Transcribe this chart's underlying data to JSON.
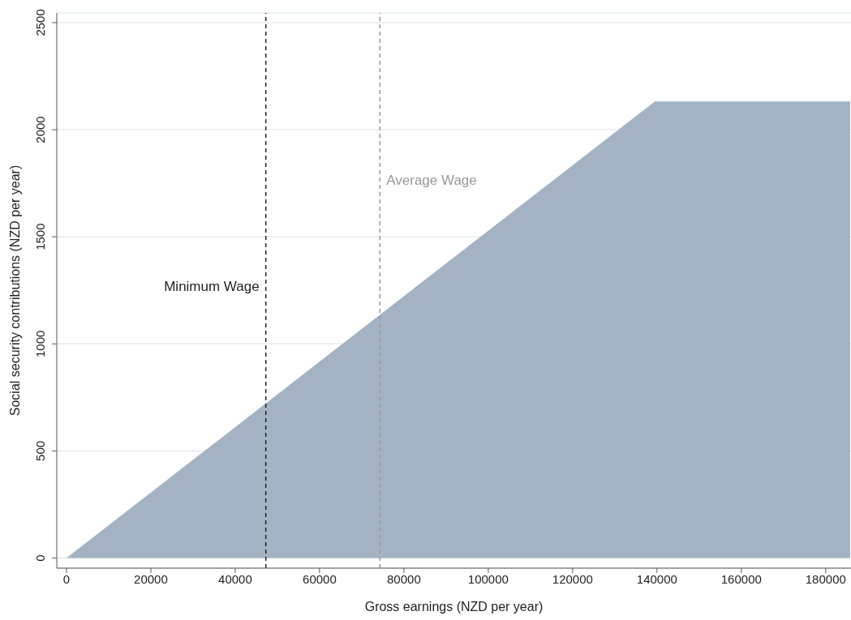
{
  "chart_data": {
    "type": "area",
    "xlabel": "Gross earnings (NZD per year)",
    "ylabel": "Social security contributions (NZD per year)",
    "x": [
      0,
      139500,
      185800
    ],
    "series": [
      {
        "color": "#a3b3c3",
        "values": [
          0,
          2132,
          2132
        ]
      }
    ],
    "xlim": [
      -2300,
      186000
    ],
    "xticks": [
      0,
      20000,
      40000,
      60000,
      80000,
      100000,
      120000,
      140000,
      160000,
      180000
    ],
    "ylim": [
      -47,
      2545
    ],
    "yticks": [
      0,
      500,
      1000,
      1500,
      2000,
      2500
    ],
    "grid": "y",
    "ref_lines": [
      {
        "axis": "x",
        "value": 47260,
        "label": "Minimum Wage",
        "color": "#222222",
        "line_style": "dashed"
      },
      {
        "axis": "x",
        "value": 74300,
        "label": "Average Wage",
        "color": "#999999",
        "line_style": "dashed"
      }
    ]
  }
}
